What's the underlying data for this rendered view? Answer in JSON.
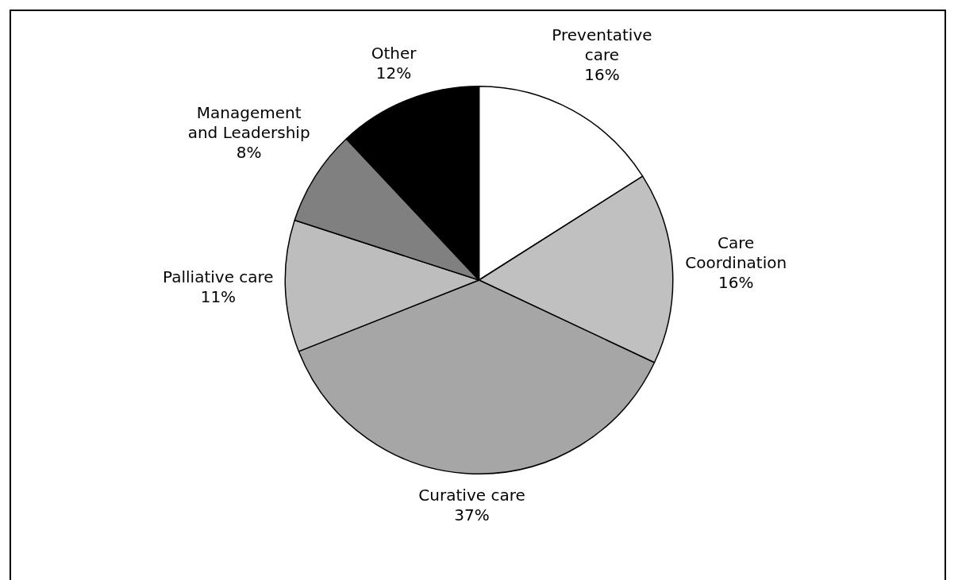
{
  "chart_data": {
    "type": "pie",
    "categories": [
      "Preventative care",
      "Care Coordination",
      "Curative care",
      "Palliative care",
      "Management and Leadership",
      "Other"
    ],
    "values": [
      16,
      16,
      37,
      11,
      8,
      12
    ],
    "colors": [
      "#ffffff",
      "#c0c0c0",
      "#a6a6a6",
      "#bdbdbd",
      "#808080",
      "#000000"
    ],
    "value_labels": [
      "16%",
      "16%",
      "37%",
      "11%",
      "8%",
      "12%"
    ],
    "legend": false
  }
}
